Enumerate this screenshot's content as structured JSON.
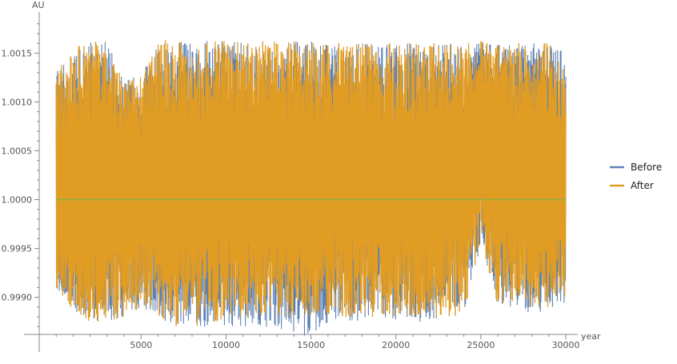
{
  "chart_data": {
    "type": "line",
    "title": "",
    "xlabel": "year",
    "ylabel": "AU",
    "xlim": [
      -1000,
      30000
    ],
    "ylim": [
      0.99862,
      1.00188
    ],
    "x_ticks": [
      5000,
      10000,
      15000,
      20000,
      25000,
      30000
    ],
    "x_tick_labels": [
      "5000",
      "10000",
      "15000",
      "20000",
      "25000",
      "30000"
    ],
    "y_ticks": [
      0.999,
      0.9995,
      1.0,
      1.0005,
      1.001,
      1.0015
    ],
    "y_tick_labels": [
      "0.9990",
      "0.9995",
      "1.0000",
      "1.0005",
      "1.0010",
      "1.0015"
    ],
    "reference_line": {
      "y": 1.0,
      "color": "#8db33f"
    },
    "legend": {
      "position": "right",
      "entries": [
        "Before",
        "After"
      ]
    },
    "series": [
      {
        "name": "Before",
        "color": "#5e81b5",
        "x": [
          0,
          1000,
          2000,
          3000,
          4000,
          5000,
          6000,
          7000,
          8000,
          9000,
          10000,
          11000,
          12000,
          13000,
          14000,
          15000,
          16000,
          17000,
          18000,
          19000,
          20000,
          21000,
          22000,
          23000,
          24000,
          25000,
          26000,
          27000,
          28000,
          29000,
          30000
        ],
        "min": [
          0.9991,
          0.99885,
          0.99875,
          0.99875,
          0.9988,
          0.9989,
          0.9988,
          0.9987,
          0.9987,
          0.9987,
          0.9987,
          0.9987,
          0.99865,
          0.99865,
          0.9986,
          0.9986,
          0.99875,
          0.99875,
          0.99875,
          0.99875,
          0.99875,
          0.99875,
          0.99875,
          0.9988,
          0.9988,
          0.99955,
          0.99895,
          0.99885,
          0.99885,
          0.99885,
          0.99895
        ],
        "max": [
          1.0013,
          1.00155,
          1.00162,
          1.00162,
          1.0012,
          1.0013,
          1.00162,
          1.00165,
          1.00162,
          1.00162,
          1.00162,
          1.00162,
          1.00162,
          1.00162,
          1.00162,
          1.00162,
          1.0016,
          1.0016,
          1.0016,
          1.0016,
          1.0016,
          1.0016,
          1.0016,
          1.0016,
          1.0016,
          1.00162,
          1.0016,
          1.0016,
          1.0016,
          1.0016,
          1.0015
        ]
      },
      {
        "name": "After",
        "color": "#e19c24",
        "x": [
          0,
          1000,
          2000,
          3000,
          4000,
          5000,
          6000,
          7000,
          8000,
          9000,
          10000,
          11000,
          12000,
          13000,
          14000,
          15000,
          16000,
          17000,
          18000,
          19000,
          20000,
          21000,
          22000,
          23000,
          24000,
          25000,
          26000,
          27000,
          28000,
          29000,
          30000
        ],
        "min": [
          0.9991,
          0.99885,
          0.99875,
          0.99875,
          0.9988,
          0.9989,
          0.9988,
          0.9987,
          0.9987,
          0.9987,
          0.9988,
          0.9988,
          0.9988,
          0.9988,
          0.9988,
          0.9988,
          0.9988,
          0.9988,
          0.9988,
          0.9988,
          0.9988,
          0.9988,
          0.9988,
          0.9988,
          0.9988,
          0.9996,
          0.9989,
          0.9989,
          0.9989,
          0.9989,
          0.999
        ],
        "max": [
          1.0013,
          1.00155,
          1.00162,
          1.00162,
          1.0012,
          1.0013,
          1.00162,
          1.00165,
          1.00162,
          1.00162,
          1.00162,
          1.00162,
          1.00162,
          1.00162,
          1.00162,
          1.0016,
          1.0016,
          1.0016,
          1.0016,
          1.0016,
          1.0016,
          1.0016,
          1.0016,
          1.0016,
          1.0016,
          1.00162,
          1.0016,
          1.0016,
          1.0016,
          1.0016,
          1.0013
        ]
      }
    ]
  }
}
